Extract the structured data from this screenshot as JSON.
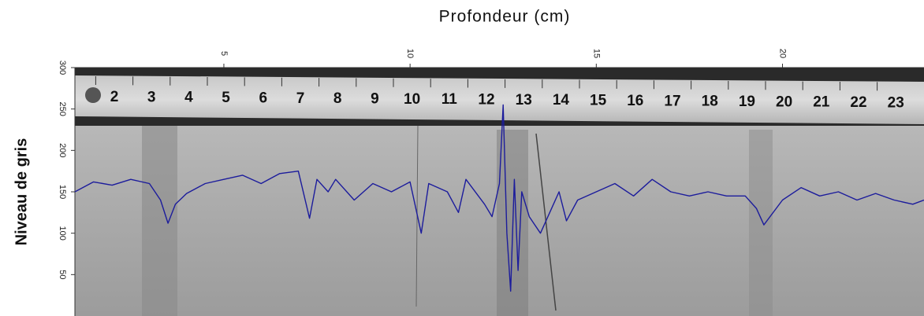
{
  "chart_data": {
    "type": "line",
    "title": "Profondeur (cm)",
    "ylabel": "Niveau de gris",
    "xlim": [
      1,
      23.8
    ],
    "xticks": [
      5,
      10,
      15,
      20
    ],
    "ylim": [
      0,
      300
    ],
    "yticks": [
      50,
      100,
      150,
      200,
      250,
      300
    ],
    "ruler_labels": [
      "2",
      "3",
      "4",
      "5",
      "6",
      "7",
      "8",
      "9",
      "10",
      "11",
      "12",
      "13",
      "14",
      "15",
      "16",
      "17",
      "18",
      "19",
      "20",
      "21",
      "22",
      "23"
    ],
    "x": [
      1,
      1.5,
      2,
      2.5,
      3,
      3.3,
      3.5,
      3.7,
      4,
      4.5,
      5,
      5.5,
      6,
      6.5,
      7,
      7.3,
      7.5,
      7.8,
      8,
      8.5,
      9,
      9.5,
      10,
      10.3,
      10.5,
      11,
      11.3,
      11.5,
      12,
      12.2,
      12.4,
      12.5,
      12.6,
      12.7,
      12.8,
      12.9,
      13,
      13.2,
      13.5,
      14,
      14.2,
      14.5,
      15,
      15.5,
      16,
      16.5,
      17,
      17.5,
      18,
      18.5,
      19,
      19.3,
      19.5,
      20,
      20.5,
      21,
      21.5,
      22,
      22.5,
      23,
      23.5,
      23.8
    ],
    "series": [
      {
        "color": "#1c1c9c",
        "values": [
          150,
          162,
          158,
          165,
          160,
          140,
          112,
          135,
          148,
          160,
          165,
          170,
          160,
          172,
          175,
          118,
          165,
          150,
          165,
          140,
          160,
          150,
          162,
          100,
          160,
          150,
          125,
          165,
          135,
          120,
          160,
          255,
          100,
          30,
          165,
          55,
          150,
          120,
          100,
          150,
          115,
          140,
          150,
          160,
          145,
          165,
          150,
          145,
          150,
          145,
          145,
          130,
          110,
          140,
          155,
          145,
          150,
          140,
          148,
          140,
          135,
          140
        ]
      }
    ]
  }
}
